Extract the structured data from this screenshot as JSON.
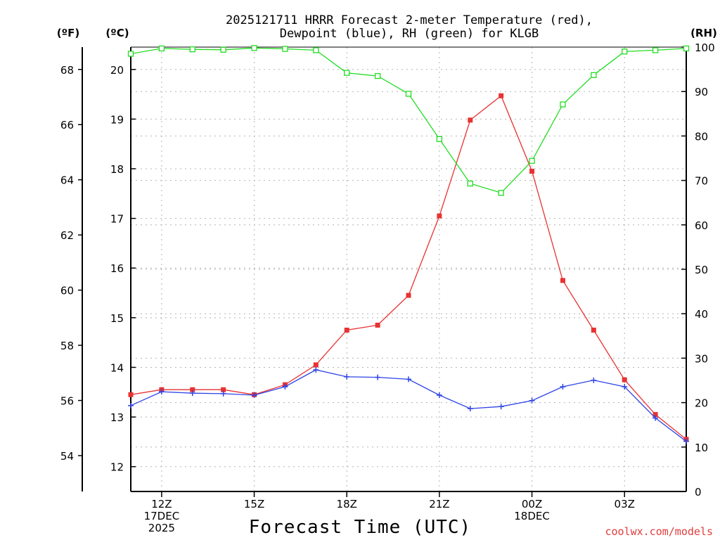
{
  "chart_data": {
    "type": "line",
    "title": "2025121711 HRRR Forecast 2-meter Temperature (red),",
    "subtitle": "Dewpoint (blue), RH (green) for KLGB",
    "xlabel": "Forecast Time (UTC)",
    "credit": "coolwx.com/models",
    "units": {
      "fahrenheit": "(ºF)",
      "celsius": "(ºC)",
      "rh": "(RH)"
    },
    "x_hours": [
      11,
      12,
      13,
      14,
      15,
      16,
      17,
      18,
      19,
      20,
      21,
      22,
      23,
      24,
      25,
      26,
      27,
      28,
      29
    ],
    "xlim": [
      11,
      29
    ],
    "x_ticks": [
      {
        "hour": 12,
        "lines": [
          "12Z",
          "17DEC",
          "2025"
        ]
      },
      {
        "hour": 15,
        "lines": [
          "15Z"
        ]
      },
      {
        "hour": 18,
        "lines": [
          "18Z"
        ]
      },
      {
        "hour": 21,
        "lines": [
          "21Z"
        ]
      },
      {
        "hour": 24,
        "lines": [
          "00Z",
          "18DEC"
        ]
      },
      {
        "hour": 27,
        "lines": [
          "03Z"
        ]
      }
    ],
    "celsius_axis": {
      "ylim": [
        11.5,
        20.45
      ],
      "ticks": [
        12,
        13,
        14,
        15,
        16,
        17,
        18,
        19,
        20
      ]
    },
    "fahrenheit_axis": {
      "ticks": [
        54,
        56,
        58,
        60,
        62,
        64,
        66,
        68
      ]
    },
    "rh_axis": {
      "ylim": [
        0,
        100
      ],
      "ticks": [
        0,
        10,
        20,
        30,
        40,
        50,
        60,
        70,
        80,
        90,
        100
      ]
    },
    "series": [
      {
        "name": "Temperature",
        "units": "C",
        "color": "#e83232",
        "marker": "filled-square",
        "values": [
          13.45,
          13.55,
          13.55,
          13.55,
          13.45,
          13.65,
          14.05,
          14.75,
          14.85,
          15.45,
          17.05,
          18.98,
          19.47,
          17.95,
          15.75,
          14.75,
          13.75,
          13.05,
          12.55
        ]
      },
      {
        "name": "Dewpoint",
        "units": "C",
        "color": "#2f44e6",
        "marker": "plus",
        "values": [
          13.23,
          13.51,
          13.48,
          13.47,
          13.44,
          13.61,
          13.95,
          13.81,
          13.8,
          13.76,
          13.44,
          13.17,
          13.21,
          13.33,
          13.61,
          13.74,
          13.61,
          12.98,
          12.51
        ]
      },
      {
        "name": "RH",
        "units": "%",
        "color": "#22dd22",
        "marker": "open-square",
        "values": [
          98.5,
          99.7,
          99.5,
          99.4,
          99.8,
          99.6,
          99.3,
          94.2,
          93.5,
          89.5,
          79.3,
          69.3,
          67.2,
          74.4,
          87.1,
          93.7,
          99.0,
          99.3,
          99.7
        ]
      }
    ]
  }
}
